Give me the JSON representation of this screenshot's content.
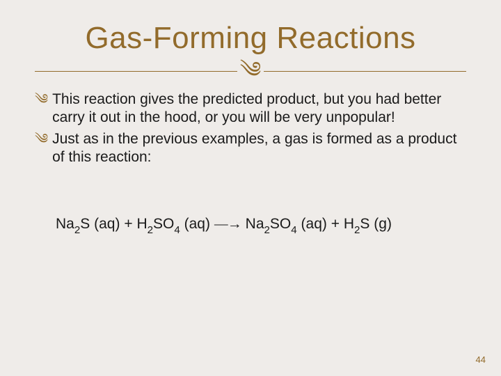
{
  "colors": {
    "background": "#efece9",
    "accent": "#926b2b",
    "text": "#1a1a1a"
  },
  "typography": {
    "title_fontsize": 44,
    "body_fontsize": 21,
    "pagenum_fontsize": 13
  },
  "title": "Gas-Forming Reactions",
  "flourish": "༄",
  "bullet_marker": "༄",
  "bullets": [
    "This reaction gives the predicted product, but you had better carry it out in the hood, or you will be very unpopular!",
    "Just as in the previous examples, a gas is formed as a product of this reaction:"
  ],
  "equation": {
    "reactant1": {
      "formula": "Na",
      "sub1": "2",
      "mid": "S",
      "state": "(aq)"
    },
    "plus1": "+",
    "reactant2": {
      "formula": "H",
      "sub1": "2",
      "mid": "SO",
      "sub2": "4",
      "state": "(aq)"
    },
    "arrow": "⎯⎯→",
    "product1": {
      "formula": "Na",
      "sub1": "2",
      "mid": "SO",
      "sub2": "4",
      "state": "(aq)"
    },
    "plus2": "+",
    "product2": {
      "formula": "H",
      "sub1": "2",
      "mid": "S",
      "state": "(g)"
    }
  },
  "page_number": "44"
}
